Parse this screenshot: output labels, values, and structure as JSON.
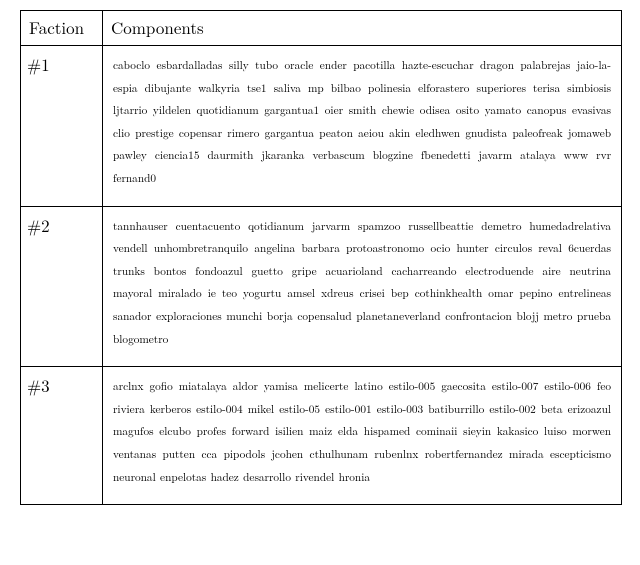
{
  "columns": {
    "faction": "Faction",
    "components": "Components"
  },
  "rows": [
    {
      "faction": "#1",
      "components": "caboclo esbardalladas silly tubo oracle ender pacotilla hazte-escuchar dragon palabre­jas jaio-la-espia dibujante walkyria tse1 saliva mp bilbao polinesia elforastero superiores terisa simbiosis ljtarrio yildelen quotidianum gargantua1 oier smith chewie odisea os­ito yamato canopus evasivas clio prestige copensar rimero gargantua peaton aeiou akin eledhwen gnudista paleofreak jomaweb pawley ciencia15 daurmith jkaranka verbascum blogzine fbenedetti javarm atalaya www rvr fernand0"
    },
    {
      "faction": "#2",
      "components": "tannhauser cuentacuento qotidianum jarvarm spamzoo russellbeattie demetro humedadrelativa vendell unhombretranquilo angelina barbara protoastronomo ocio hunter circulos reval 6cuerdas trunks bontos fondoazul guetto gripe acuarioland cacharreando electroduende aire neutrina mayoral miralado ie teo yogurtu amsel xdreus crisei bep cothinkhealth omar pepino entrelineas sanador exploraciones munchi borja copensalud planetaneverland confrontacion blojj metro prueba blogometro"
    },
    {
      "faction": "#3",
      "components": "arclnx gofio miatalaya aldor yamisa melicerte latino estilo-005 gaecosita estilo-007 estilo-006 feo riviera kerberos estilo-004 mikel estilo-05 estilo-001 estilo-003 batiburrillo estilo-002 beta erizoazul magufos elcubo profes forward isilien maiz elda hispamed cominaii sieyin kakasico luiso morwen ventanas putten cca pipodols jcohen cthulhunam rubenlnx robertfernandez mirada escepticismo neuronal enpelotas hadez desarrollo rivendel hronia"
    }
  ]
}
